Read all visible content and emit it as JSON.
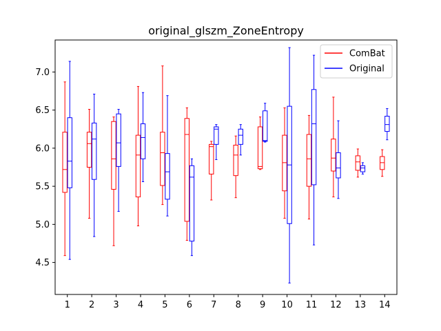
{
  "chart_data": {
    "type": "boxplot",
    "title": "original_glszm_ZoneEntropy",
    "xlabel": "",
    "ylabel": "",
    "categories": [
      "1",
      "2",
      "3",
      "4",
      "5",
      "6",
      "7",
      "8",
      "9",
      "10",
      "11",
      "12",
      "13",
      "14"
    ],
    "xlim": [
      0.5,
      14.5
    ],
    "ylim": [
      4.08,
      7.42
    ],
    "yticks": [
      "4.5",
      "5.0",
      "5.5",
      "6.0",
      "6.5",
      "7.0"
    ],
    "grid": false,
    "legend_position": "top-right",
    "series": [
      {
        "name": "ComBat",
        "color": "#ff0000",
        "boxes": [
          {
            "category": "1",
            "whislo": 4.59,
            "q1": 5.42,
            "med": 5.72,
            "q3": 6.21,
            "whishi": 6.87
          },
          {
            "category": "2",
            "whislo": 5.08,
            "q1": 5.75,
            "med": 6.06,
            "q3": 6.21,
            "whishi": 6.51
          },
          {
            "category": "3",
            "whislo": 4.72,
            "q1": 5.46,
            "med": 5.86,
            "q3": 6.35,
            "whishi": 6.41
          },
          {
            "category": "4",
            "whislo": 4.98,
            "q1": 5.36,
            "med": 5.91,
            "q3": 6.17,
            "whishi": 6.81
          },
          {
            "category": "5",
            "whislo": 5.26,
            "q1": 5.51,
            "med": 5.94,
            "q3": 6.21,
            "whishi": 7.08
          },
          {
            "category": "6",
            "whislo": 4.79,
            "q1": 5.04,
            "med": 6.18,
            "q3": 6.39,
            "whishi": 6.53
          },
          {
            "category": "7",
            "whislo": 5.32,
            "q1": 5.66,
            "med": 6.02,
            "q3": 6.05,
            "whishi": 6.09
          },
          {
            "category": "8",
            "whislo": 5.35,
            "q1": 5.64,
            "med": 5.91,
            "q3": 6.04,
            "whishi": 6.16
          },
          {
            "category": "9",
            "whislo": 5.72,
            "q1": 5.73,
            "med": 5.76,
            "q3": 6.28,
            "whishi": 6.41
          },
          {
            "category": "10",
            "whislo": 5.08,
            "q1": 5.44,
            "med": 5.81,
            "q3": 6.17,
            "whishi": 6.53
          },
          {
            "category": "11",
            "whislo": 5.07,
            "q1": 5.5,
            "med": 5.86,
            "q3": 6.18,
            "whishi": 6.43
          },
          {
            "category": "12",
            "whislo": 5.36,
            "q1": 5.7,
            "med": 5.87,
            "q3": 6.12,
            "whishi": 6.67
          },
          {
            "category": "13",
            "whislo": 5.62,
            "q1": 5.71,
            "med": 5.82,
            "q3": 5.9,
            "whishi": 5.99
          },
          {
            "category": "14",
            "whislo": 5.63,
            "q1": 5.72,
            "med": 5.81,
            "q3": 5.89,
            "whishi": 5.98
          }
        ]
      },
      {
        "name": "Original",
        "color": "#0000ff",
        "boxes": [
          {
            "category": "1",
            "whislo": 4.54,
            "q1": 5.48,
            "med": 5.83,
            "q3": 6.4,
            "whishi": 7.14
          },
          {
            "category": "2",
            "whislo": 4.84,
            "q1": 5.59,
            "med": 6.12,
            "q3": 6.33,
            "whishi": 6.71
          },
          {
            "category": "3",
            "whislo": 5.17,
            "q1": 5.76,
            "med": 6.07,
            "q3": 6.45,
            "whishi": 6.51
          },
          {
            "category": "4",
            "whislo": 5.56,
            "q1": 5.86,
            "med": 6.14,
            "q3": 6.32,
            "whishi": 6.73
          },
          {
            "category": "5",
            "whislo": 5.11,
            "q1": 5.33,
            "med": 5.69,
            "q3": 5.93,
            "whishi": 6.69
          },
          {
            "category": "6",
            "whislo": 4.59,
            "q1": 4.78,
            "med": 5.62,
            "q3": 5.77,
            "whishi": 5.86
          },
          {
            "category": "7",
            "whislo": 5.85,
            "q1": 6.05,
            "med": 6.25,
            "q3": 6.28,
            "whishi": 6.31
          },
          {
            "category": "8",
            "whislo": 5.91,
            "q1": 6.05,
            "med": 6.17,
            "q3": 6.25,
            "whishi": 6.31
          },
          {
            "category": "9",
            "whislo": 6.08,
            "q1": 6.09,
            "med": 6.1,
            "q3": 6.49,
            "whishi": 6.59
          },
          {
            "category": "10",
            "whislo": 4.23,
            "q1": 5.01,
            "med": 5.78,
            "q3": 6.55,
            "whishi": 7.32
          },
          {
            "category": "11",
            "whislo": 4.73,
            "q1": 5.52,
            "med": 6.32,
            "q3": 6.77,
            "whishi": 7.22
          },
          {
            "category": "12",
            "whislo": 5.34,
            "q1": 5.61,
            "med": 5.74,
            "q3": 5.94,
            "whishi": 6.36
          },
          {
            "category": "13",
            "whislo": 5.66,
            "q1": 5.69,
            "med": 5.74,
            "q3": 5.77,
            "whishi": 5.81
          },
          {
            "category": "14",
            "whislo": 6.11,
            "q1": 6.22,
            "med": 6.31,
            "q3": 6.42,
            "whishi": 6.52
          }
        ]
      }
    ]
  }
}
